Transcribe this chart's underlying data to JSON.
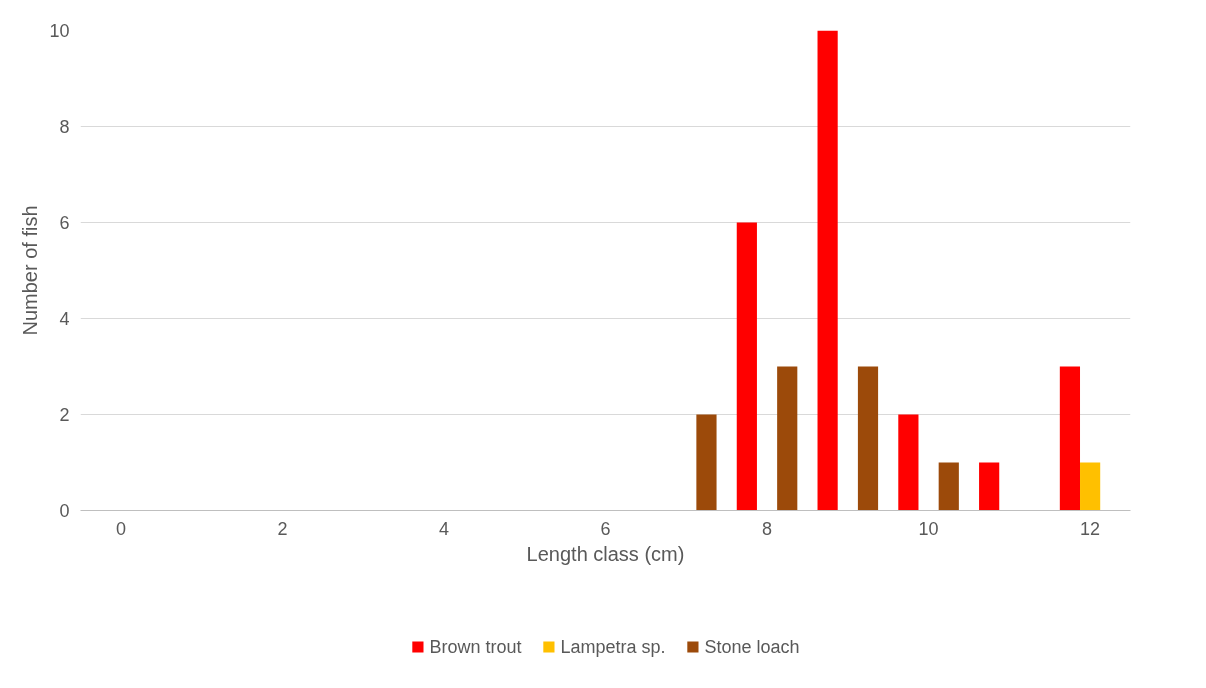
{
  "chart_data": {
    "type": "bar",
    "xlabel": "Length class (cm)",
    "ylabel": "Number of fish",
    "categories": [
      "0",
      null,
      "2",
      null,
      "4",
      null,
      "6",
      null,
      "8",
      null,
      "10",
      null,
      "12"
    ],
    "series": [
      {
        "name": "Brown trout",
        "color": "#ff0000",
        "values": [
          0,
          0,
          0,
          0,
          0,
          0,
          0,
          0,
          6,
          10,
          2,
          1,
          3
        ]
      },
      {
        "name": "Lampetra sp.",
        "color": "#ffc000",
        "values": [
          0,
          0,
          0,
          0,
          0,
          0,
          0,
          0,
          0,
          0,
          0,
          0,
          1
        ]
      },
      {
        "name": "Stone loach",
        "color": "#9c4a0a",
        "values": [
          0,
          0,
          0,
          0,
          0,
          0,
          0,
          2,
          3,
          3,
          1,
          0,
          0
        ]
      }
    ],
    "ylim": [
      0,
      10
    ],
    "yticks": [
      0,
      2,
      4,
      6,
      8,
      10
    ],
    "grid": "y",
    "legend": "bottom"
  }
}
